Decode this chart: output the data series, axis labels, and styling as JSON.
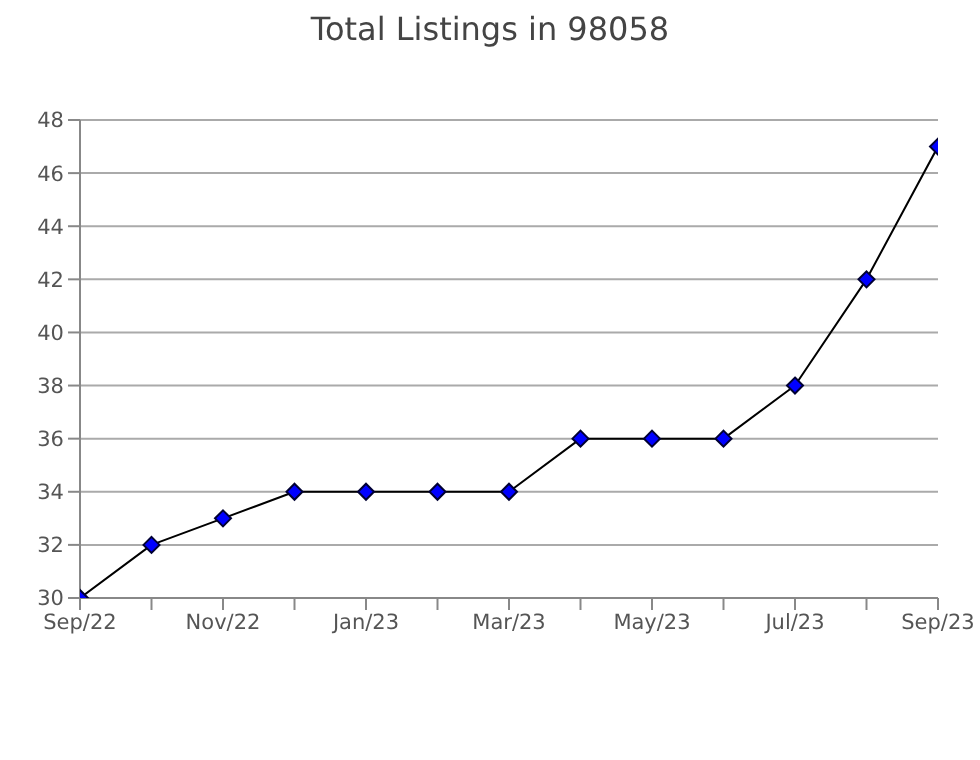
{
  "chart_data": {
    "type": "line",
    "title": "Total Listings in 98058",
    "categories": [
      "Sep/22",
      null,
      "Nov/22",
      null,
      "Jan/23",
      null,
      "Mar/23",
      null,
      "May/23",
      null,
      "Jul/23",
      null,
      "Sep/23"
    ],
    "series": [
      {
        "color": "#000000",
        "values": [
          30,
          32,
          33,
          34,
          34,
          34,
          34,
          36,
          36,
          36,
          38,
          42,
          47
        ]
      }
    ],
    "ylim": [
      30,
      48
    ],
    "yticks": [
      30,
      32,
      34,
      36,
      38,
      40,
      42,
      44,
      46,
      48
    ],
    "grid": "y",
    "marker": "diamond",
    "line_style": "solid"
  }
}
